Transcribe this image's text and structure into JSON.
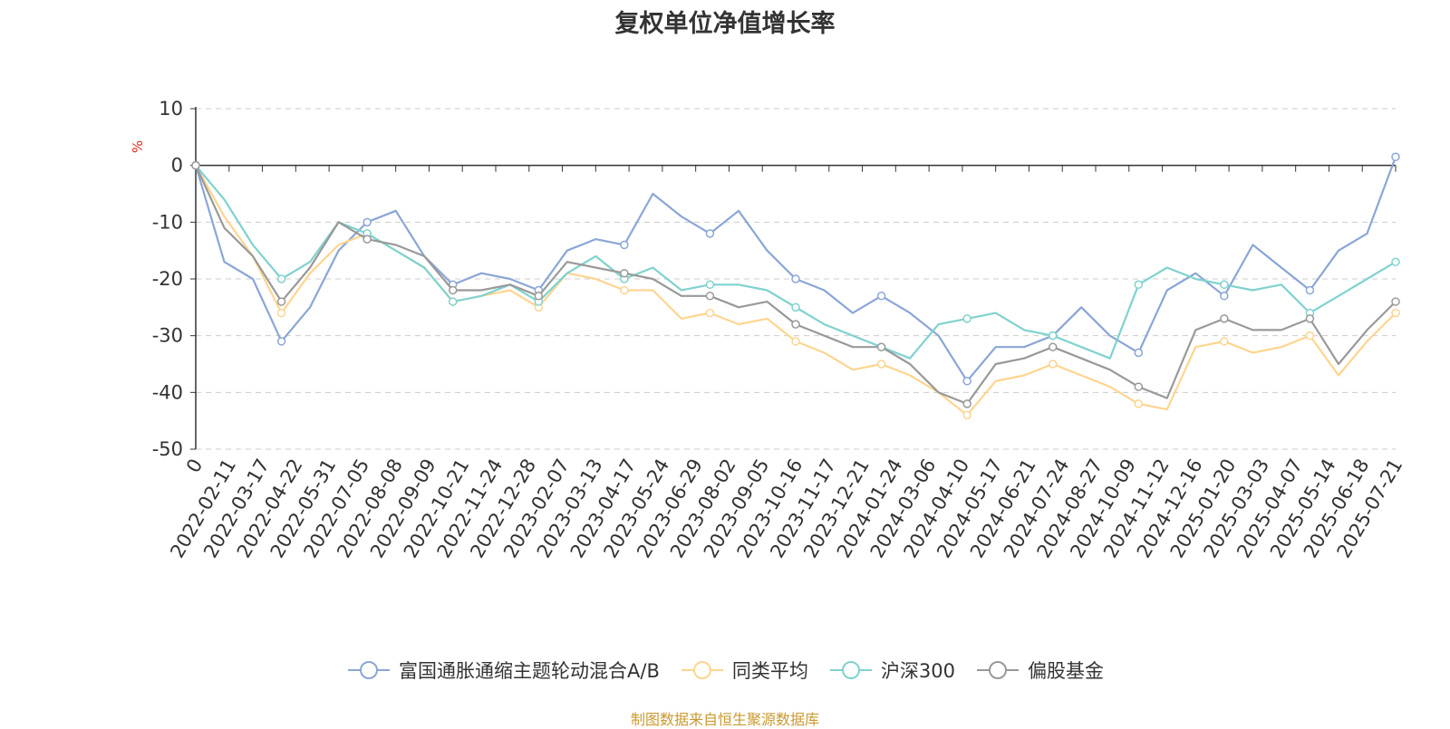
{
  "title": "复权单位净值增长率",
  "source": "制图数据来自恒生聚源数据库",
  "chart_data": {
    "type": "line",
    "title": "复权单位净值增长率",
    "ylabel": "%",
    "ylim": [
      -50,
      10
    ],
    "y_ticks": [
      "10",
      "0",
      "-10",
      "-20",
      "-30",
      "-40",
      "-50"
    ],
    "x_start_label": "0",
    "x_tick_labels": [
      "2022-02-11",
      "2022-03-17",
      "2022-04-22",
      "2022-05-31",
      "2022-07-05",
      "2022-08-08",
      "2022-09-09",
      "2022-10-21",
      "2022-11-24",
      "2022-12-28",
      "2023-02-07",
      "2023-03-13",
      "2023-04-17",
      "2023-05-24",
      "2023-06-29",
      "2023-08-02",
      "2023-09-05",
      "2023-10-16",
      "2023-11-17",
      "2023-12-21",
      "2024-01-24",
      "2024-03-06",
      "2024-04-10",
      "2024-05-17",
      "2024-06-21",
      "2024-07-24",
      "2024-08-27",
      "2024-10-09",
      "2024-11-12",
      "2024-12-16",
      "2025-01-20",
      "2025-03-03",
      "2025-04-07",
      "2025-05-14",
      "2025-06-18",
      "2025-07-21"
    ],
    "grid": true,
    "legend_position": "bottom",
    "series": [
      {
        "name": "富国通胀通缩主题轮动混合A/B",
        "color": "#8aa6d6",
        "values": [
          0,
          -17,
          -20,
          -31,
          -25,
          -15,
          -10,
          -8,
          -16,
          -21,
          -19,
          -20,
          -22,
          -15,
          -13,
          -14,
          -5,
          -9,
          -12,
          -8,
          -15,
          -20,
          -22,
          -26,
          -23,
          -26,
          -30,
          -38,
          -32,
          -32,
          -30,
          -25,
          -30,
          -33,
          -22,
          -19,
          -23,
          -14,
          -18,
          -22,
          -15,
          -12,
          1.5
        ]
      },
      {
        "name": "同类平均",
        "color": "#fdd58f",
        "values": [
          0,
          -9,
          -16,
          -26,
          -19,
          -14,
          -12,
          -15,
          -18,
          -24,
          -23,
          -22,
          -25,
          -19,
          -20,
          -22,
          -22,
          -27,
          -26,
          -28,
          -27,
          -31,
          -33,
          -36,
          -35,
          -37,
          -40,
          -44,
          -38,
          -37,
          -35,
          -37,
          -39,
          -42,
          -43,
          -32,
          -31,
          -33,
          -32,
          -30,
          -37,
          -31,
          -26
        ]
      },
      {
        "name": "沪深300",
        "color": "#7fd2cf",
        "values": [
          0,
          -6,
          -14,
          -20,
          -17,
          -10,
          -12,
          -15,
          -18,
          -24,
          -23,
          -21,
          -24,
          -19,
          -16,
          -20,
          -18,
          -22,
          -21,
          -21,
          -22,
          -25,
          -28,
          -30,
          -32,
          -34,
          -28,
          -27,
          -26,
          -29,
          -30,
          -32,
          -34,
          -21,
          -18,
          -20,
          -21,
          -22,
          -21,
          -26,
          -23,
          -20,
          -17
        ]
      },
      {
        "name": "偏股基金",
        "color": "#999999",
        "values": [
          0,
          -11,
          -16,
          -24,
          -18,
          -10,
          -13,
          -14,
          -16,
          -22,
          -22,
          -21,
          -23,
          -17,
          -18,
          -19,
          -20,
          -23,
          -23,
          -25,
          -24,
          -28,
          -30,
          -32,
          -32,
          -35,
          -40,
          -42,
          -35,
          -34,
          -32,
          -34,
          -36,
          -39,
          -41,
          -29,
          -27,
          -29,
          -29,
          -27,
          -35,
          -29,
          -24
        ]
      }
    ]
  }
}
